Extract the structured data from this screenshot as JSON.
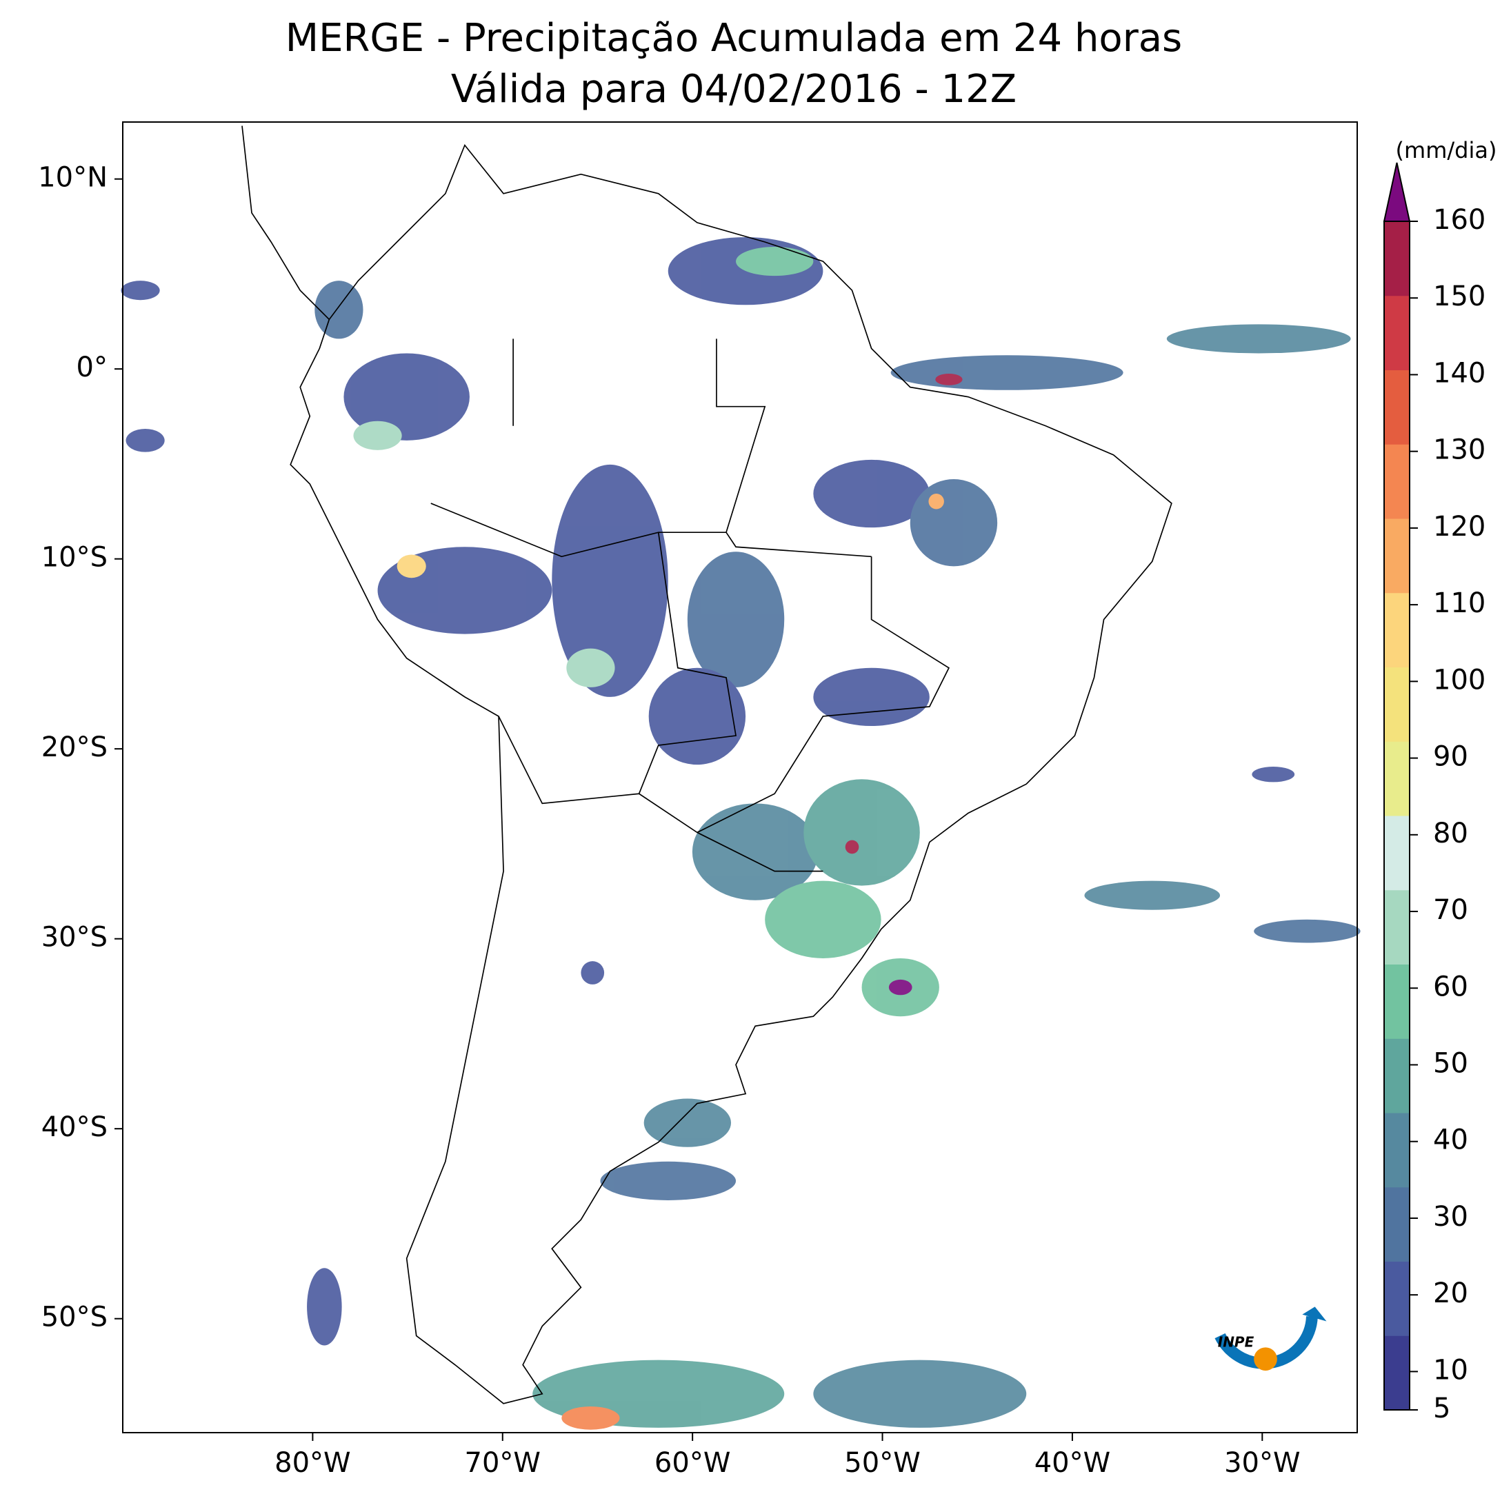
{
  "title": "MERGE - Precipitação Acumulada em 24 horas",
  "subtitle": "Válida para 04/02/2016 - 12Z",
  "map": {
    "type": "map",
    "xlim": [
      -90,
      -25
    ],
    "ylim": [
      -56,
      13
    ],
    "xticks": [
      {
        "value": -80,
        "label": "80°W"
      },
      {
        "value": -70,
        "label": "70°W"
      },
      {
        "value": -60,
        "label": "60°W"
      },
      {
        "value": -50,
        "label": "50°W"
      },
      {
        "value": -40,
        "label": "40°W"
      },
      {
        "value": -30,
        "label": "30°W"
      }
    ],
    "yticks": [
      {
        "value": 10,
        "label": "10°N"
      },
      {
        "value": 0,
        "label": "0°"
      },
      {
        "value": -10,
        "label": "10°S"
      },
      {
        "value": -20,
        "label": "20°S"
      },
      {
        "value": -30,
        "label": "30°S"
      },
      {
        "value": -40,
        "label": "40°S"
      },
      {
        "value": -50,
        "label": "50°S"
      }
    ]
  },
  "colorbar": {
    "label": "(mm/dia)",
    "lim": [
      5,
      160
    ],
    "ticks": [
      5,
      10,
      20,
      30,
      40,
      50,
      60,
      70,
      80,
      90,
      100,
      110,
      120,
      130,
      140,
      150,
      160
    ],
    "colors": [
      "#3b3d8f",
      "#4a5a9f",
      "#50749f",
      "#56899f",
      "#5fa69d",
      "#72c3a0",
      "#a6d8c0",
      "#d4ebe6",
      "#e8ec8c",
      "#f4e27c",
      "#fcd57c",
      "#f9aa62",
      "#f48651",
      "#e45d3f",
      "#cf3a45",
      "#a51f47"
    ],
    "extend_color": "#7b0a7f"
  },
  "logo_text": "INPE"
}
